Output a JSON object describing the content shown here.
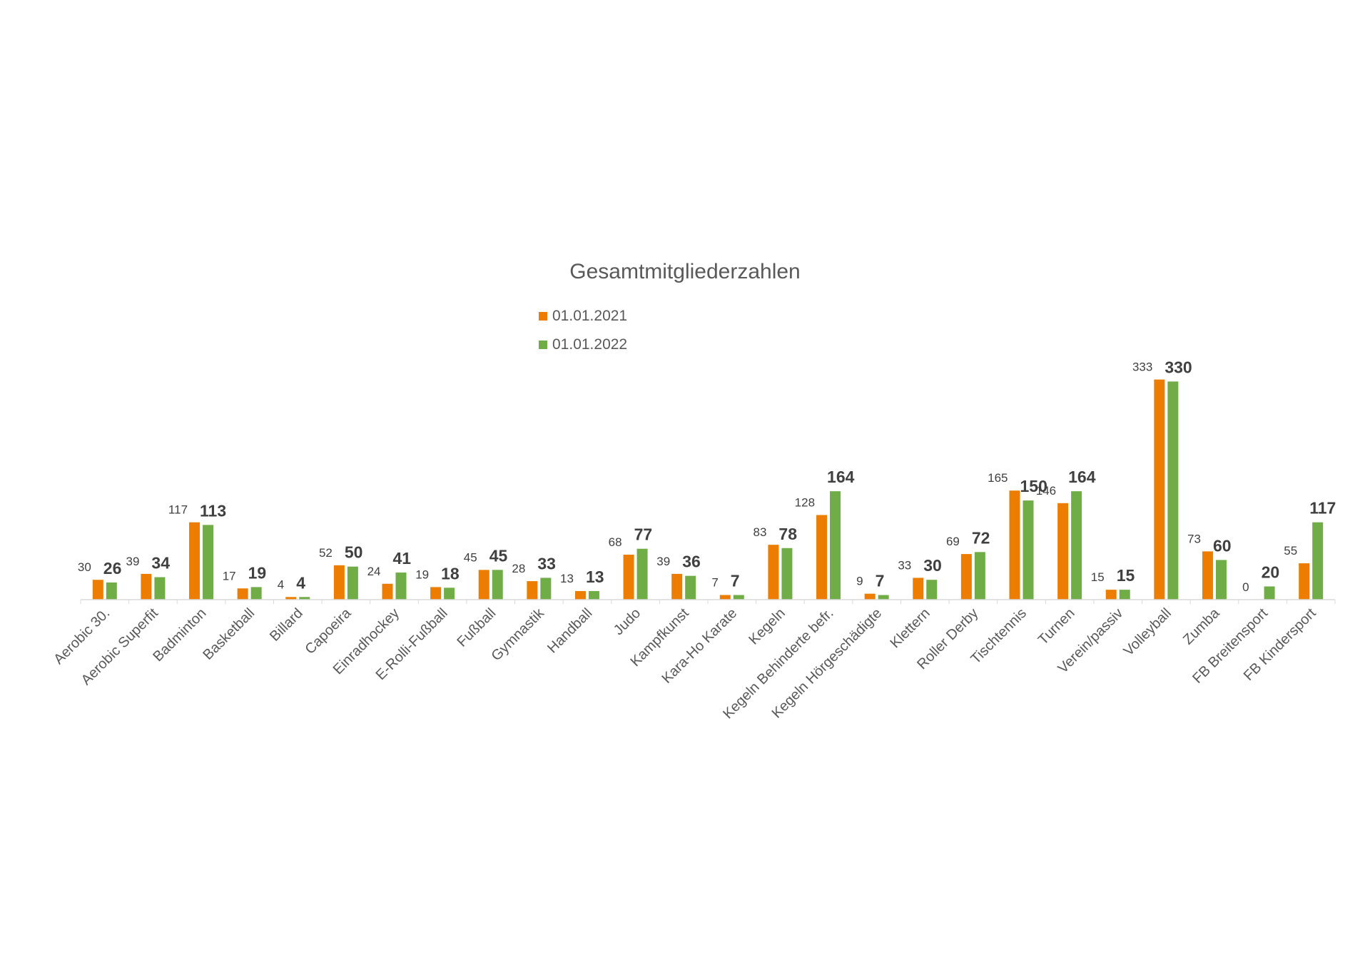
{
  "chart_data": {
    "type": "bar",
    "title": "Gesamtmitgliederzahlen",
    "xlabel": "",
    "ylabel": "",
    "ylim": [
      0,
      340
    ],
    "grid": false,
    "legend_position": "top-center",
    "categories": [
      "Aerobic 30.",
      "Aerobic Superfit",
      "Badminton",
      "Basketball",
      "Billard",
      "Capoeira",
      "Einradhockey",
      "E-Rolli-Fußball",
      "Fußball",
      "Gymnastik",
      "Handball",
      "Judo",
      "Kampfkunst",
      "Kara-Ho Karate",
      "Kegeln",
      "Kegeln Behinderte befr.",
      "Kegeln Hörgeschädigte",
      "Klettern",
      "Roller Derby",
      "Tischtennis",
      "Turnen",
      "Verein/passiv",
      "Volleyball",
      "Zumba",
      "FB Breitensport",
      "FB Kindersport"
    ],
    "series": [
      {
        "name": "01.01.2021",
        "color": "#ed7d00",
        "values": [
          30,
          39,
          117,
          17,
          4,
          52,
          24,
          19,
          45,
          28,
          13,
          68,
          39,
          7,
          83,
          128,
          9,
          33,
          69,
          165,
          146,
          15,
          333,
          73,
          0,
          55
        ]
      },
      {
        "name": "01.01.2022",
        "color": "#70ad47",
        "values": [
          26,
          34,
          113,
          19,
          4,
          50,
          41,
          18,
          45,
          33,
          13,
          77,
          36,
          7,
          78,
          164,
          7,
          30,
          72,
          150,
          164,
          15,
          330,
          60,
          20,
          117
        ]
      }
    ]
  }
}
